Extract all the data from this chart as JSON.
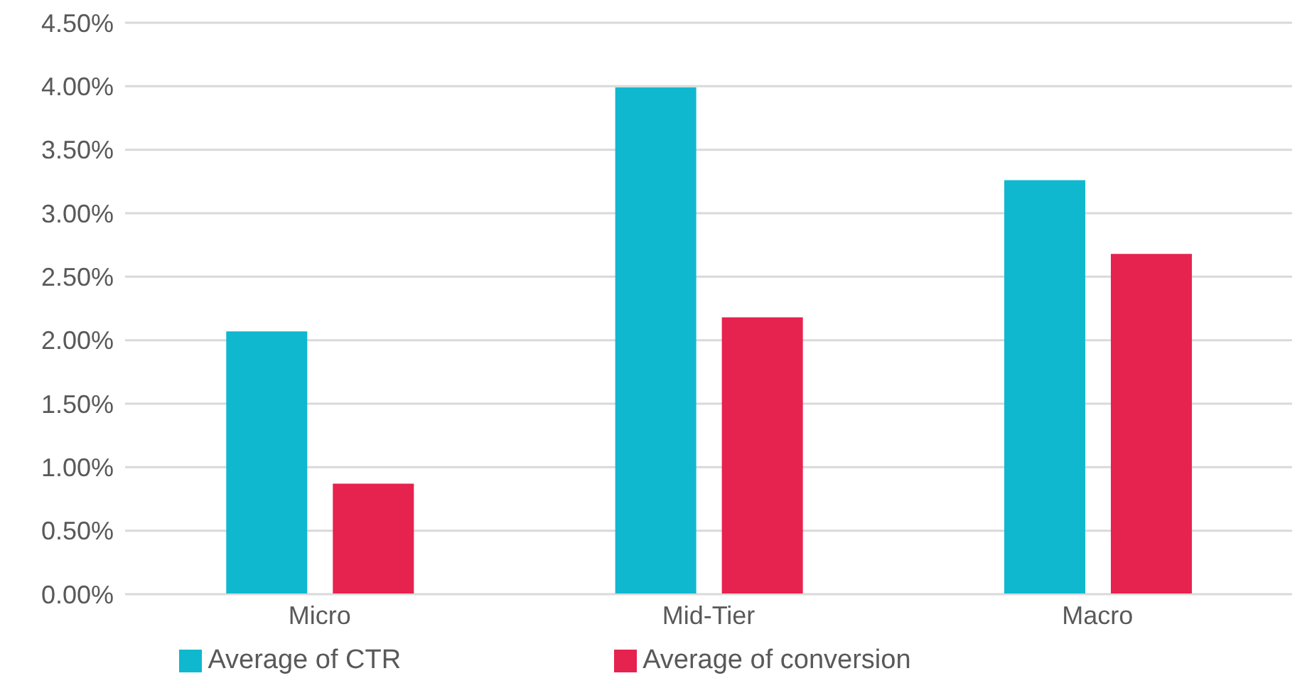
{
  "chart_data": {
    "type": "bar",
    "categories": [
      "Micro",
      "Mid-Tier",
      "Macro"
    ],
    "series": [
      {
        "name": "Average of CTR",
        "color": "#0fb8cf",
        "values": [
          2.07,
          3.99,
          3.26
        ]
      },
      {
        "name": "Average of conversion",
        "color": "#e6224f",
        "values": [
          0.87,
          2.18,
          2.68
        ]
      }
    ],
    "ylim": [
      0,
      4.5
    ],
    "yticks": [
      {
        "value": 0,
        "label": "0.00%"
      },
      {
        "value": 0.5,
        "label": "0.50%"
      },
      {
        "value": 1,
        "label": "1.00%"
      },
      {
        "value": 1.5,
        "label": "1.50%"
      },
      {
        "value": 2,
        "label": "2.00%"
      },
      {
        "value": 2.5,
        "label": "2.50%"
      },
      {
        "value": 3,
        "label": "3.00%"
      },
      {
        "value": 3.5,
        "label": "3.50%"
      },
      {
        "value": 4,
        "label": "4.00%"
      },
      {
        "value": 4.5,
        "label": "4.50%"
      }
    ],
    "grid": "y",
    "legend": "bottom"
  }
}
